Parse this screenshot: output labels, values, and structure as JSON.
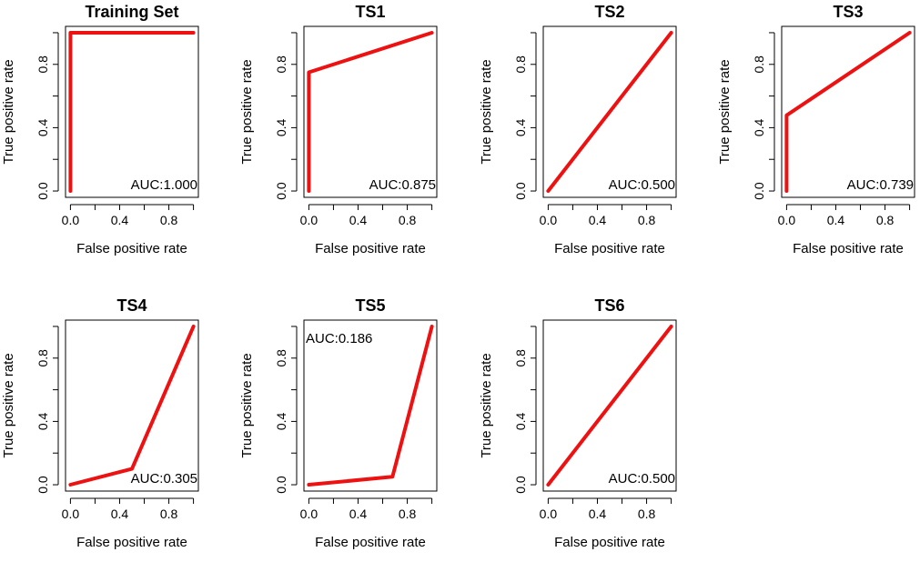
{
  "chart_data": [
    {
      "type": "line",
      "title": "Training Set",
      "xlabel": "False positive rate",
      "ylabel": "True positive rate",
      "xlim": [
        0,
        1
      ],
      "ylim": [
        0,
        1
      ],
      "x_ticks": [
        "0.0",
        "0.4",
        "0.8"
      ],
      "y_ticks": [
        "0.0",
        "0.4",
        "0.8"
      ],
      "series": [
        {
          "x": [
            0,
            0,
            1
          ],
          "y": [
            0,
            1,
            1
          ],
          "color": "#ee1111"
        }
      ],
      "annotation": {
        "text": "AUC:1.000",
        "position": "bottom-right"
      }
    },
    {
      "type": "line",
      "title": "TS1",
      "xlabel": "False positive rate",
      "ylabel": "True positive rate",
      "xlim": [
        0,
        1
      ],
      "ylim": [
        0,
        1
      ],
      "x_ticks": [
        "0.0",
        "0.4",
        "0.8"
      ],
      "y_ticks": [
        "0.0",
        "0.4",
        "0.8"
      ],
      "series": [
        {
          "x": [
            0,
            0,
            1
          ],
          "y": [
            0,
            0.75,
            1
          ],
          "color": "#ee1111"
        }
      ],
      "annotation": {
        "text": "AUC:0.875",
        "position": "bottom-right"
      }
    },
    {
      "type": "line",
      "title": "TS2",
      "xlabel": "False positive rate",
      "ylabel": "True positive rate",
      "xlim": [
        0,
        1
      ],
      "ylim": [
        0,
        1
      ],
      "x_ticks": [
        "0.0",
        "0.4",
        "0.8"
      ],
      "y_ticks": [
        "0.0",
        "0.4",
        "0.8"
      ],
      "series": [
        {
          "x": [
            0,
            1
          ],
          "y": [
            0,
            1
          ],
          "color": "#ee1111"
        }
      ],
      "annotation": {
        "text": "AUC:0.500",
        "position": "bottom-right"
      }
    },
    {
      "type": "line",
      "title": "TS3",
      "xlabel": "False positive rate",
      "ylabel": "True positive rate",
      "xlim": [
        0,
        1
      ],
      "ylim": [
        0,
        1
      ],
      "x_ticks": [
        "0.0",
        "0.4",
        "0.8"
      ],
      "y_ticks": [
        "0.0",
        "0.4",
        "0.8"
      ],
      "series": [
        {
          "x": [
            0,
            0,
            1
          ],
          "y": [
            0,
            0.478,
            1
          ],
          "color": "#ee1111"
        }
      ],
      "annotation": {
        "text": "AUC:0.739",
        "position": "bottom-right"
      }
    },
    {
      "type": "line",
      "title": "TS4",
      "xlabel": "False positive rate",
      "ylabel": "True positive rate",
      "xlim": [
        0,
        1
      ],
      "ylim": [
        0,
        1
      ],
      "x_ticks": [
        "0.0",
        "0.4",
        "0.8"
      ],
      "y_ticks": [
        "0.0",
        "0.4",
        "0.8"
      ],
      "series": [
        {
          "x": [
            0,
            0.5,
            1
          ],
          "y": [
            0,
            0.1,
            1
          ],
          "color": "#ee1111"
        }
      ],
      "annotation": {
        "text": "AUC:0.305",
        "position": "bottom-right"
      }
    },
    {
      "type": "line",
      "title": "TS5",
      "xlabel": "False positive rate",
      "ylabel": "True positive rate",
      "xlim": [
        0,
        1
      ],
      "ylim": [
        0,
        1
      ],
      "x_ticks": [
        "0.0",
        "0.4",
        "0.8"
      ],
      "y_ticks": [
        "0.0",
        "0.4",
        "0.8"
      ],
      "series": [
        {
          "x": [
            0,
            0.68,
            1
          ],
          "y": [
            0,
            0.05,
            1
          ],
          "color": "#ee1111"
        }
      ],
      "annotation": {
        "text": "AUC:0.186",
        "position": "top-left"
      }
    },
    {
      "type": "line",
      "title": "TS6",
      "xlabel": "False positive rate",
      "ylabel": "True positive rate",
      "xlim": [
        0,
        1
      ],
      "ylim": [
        0,
        1
      ],
      "x_ticks": [
        "0.0",
        "0.4",
        "0.8"
      ],
      "y_ticks": [
        "0.0",
        "0.4",
        "0.8"
      ],
      "series": [
        {
          "x": [
            0,
            1
          ],
          "y": [
            0,
            1
          ],
          "color": "#ee1111"
        }
      ],
      "annotation": {
        "text": "AUC:0.500",
        "position": "bottom-right"
      }
    }
  ]
}
